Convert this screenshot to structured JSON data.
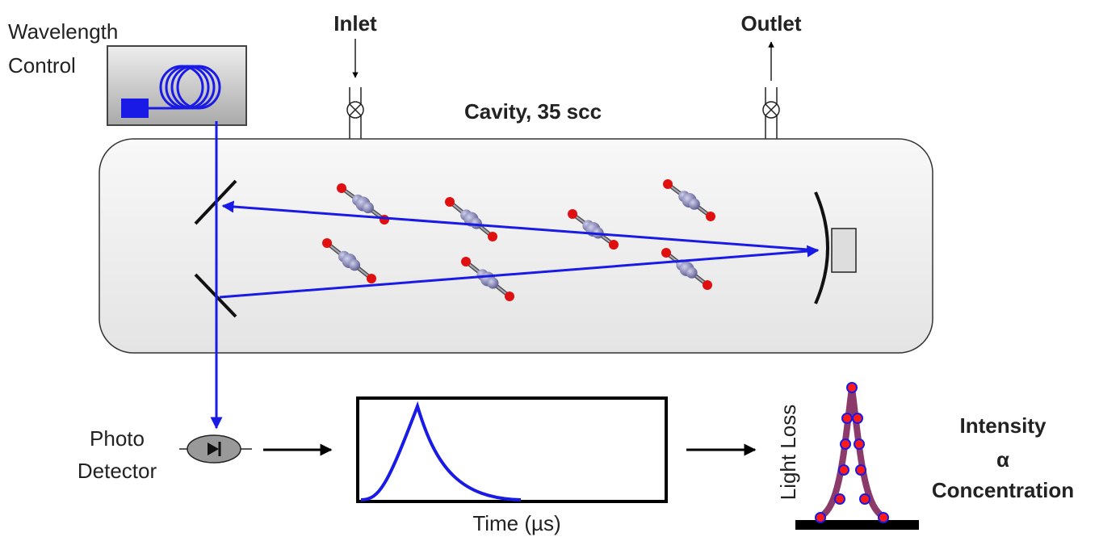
{
  "labels": {
    "wavelength_control": [
      "Wavelength",
      "Control"
    ],
    "inlet": "Inlet",
    "outlet": "Outlet",
    "cavity": "Cavity, 35 scc",
    "photo_detector": [
      "Photo",
      "Detector"
    ],
    "time_axis": "Time (µs)",
    "light_loss": "Light Loss",
    "relation": [
      "Intensity",
      "α",
      "Concentration"
    ]
  }
}
